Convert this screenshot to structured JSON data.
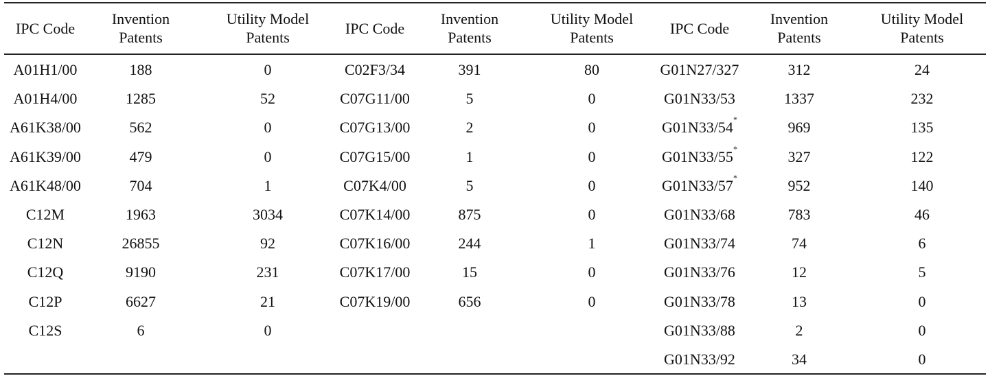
{
  "headers": [
    [
      "IPC Code"
    ],
    [
      "Invention",
      "Patents"
    ],
    [
      "Utility Model",
      "Patents"
    ]
  ],
  "groups": [
    {
      "rows": [
        {
          "code": "A01H1/00",
          "sup": "",
          "inv": "188",
          "util": "0"
        },
        {
          "code": "A01H4/00",
          "sup": "",
          "inv": "1285",
          "util": "52"
        },
        {
          "code": "A61K38/00",
          "sup": "",
          "inv": "562",
          "util": "0"
        },
        {
          "code": "A61K39/00",
          "sup": "",
          "inv": "479",
          "util": "0"
        },
        {
          "code": "A61K48/00",
          "sup": "",
          "inv": "704",
          "util": "1"
        },
        {
          "code": "C12M",
          "sup": "",
          "inv": "1963",
          "util": "3034"
        },
        {
          "code": "C12N",
          "sup": "",
          "inv": "26855",
          "util": "92"
        },
        {
          "code": "C12Q",
          "sup": "",
          "inv": "9190",
          "util": "231"
        },
        {
          "code": "C12P",
          "sup": "",
          "inv": "6627",
          "util": "21"
        },
        {
          "code": "C12S",
          "sup": "",
          "inv": "6",
          "util": "0"
        }
      ]
    },
    {
      "rows": [
        {
          "code": "C02F3/34",
          "sup": "",
          "inv": "391",
          "util": "80"
        },
        {
          "code": "C07G11/00",
          "sup": "",
          "inv": "5",
          "util": "0"
        },
        {
          "code": "C07G13/00",
          "sup": "",
          "inv": "2",
          "util": "0"
        },
        {
          "code": "C07G15/00",
          "sup": "",
          "inv": "1",
          "util": "0"
        },
        {
          "code": "C07K4/00",
          "sup": "",
          "inv": "5",
          "util": "0"
        },
        {
          "code": "C07K14/00",
          "sup": "",
          "inv": "875",
          "util": "0"
        },
        {
          "code": "C07K16/00",
          "sup": "",
          "inv": "244",
          "util": "1"
        },
        {
          "code": "C07K17/00",
          "sup": "",
          "inv": "15",
          "util": "0"
        },
        {
          "code": "C07K19/00",
          "sup": "",
          "inv": "656",
          "util": "0"
        }
      ]
    },
    {
      "rows": [
        {
          "code": "G01N27/327",
          "sup": "",
          "inv": "312",
          "util": "24"
        },
        {
          "code": "G01N33/53",
          "sup": "",
          "inv": "1337",
          "util": "232"
        },
        {
          "code": "G01N33/54",
          "sup": "*",
          "inv": "969",
          "util": "135"
        },
        {
          "code": "G01N33/55",
          "sup": "*",
          "inv": "327",
          "util": "122"
        },
        {
          "code": "G01N33/57",
          "sup": "*",
          "inv": "952",
          "util": "140"
        },
        {
          "code": "G01N33/68",
          "sup": "",
          "inv": "783",
          "util": "46"
        },
        {
          "code": "G01N33/74",
          "sup": "",
          "inv": "74",
          "util": "6"
        },
        {
          "code": "G01N33/76",
          "sup": "",
          "inv": "12",
          "util": "5"
        },
        {
          "code": "G01N33/78",
          "sup": "",
          "inv": "13",
          "util": "0"
        },
        {
          "code": "G01N33/88",
          "sup": "",
          "inv": "2",
          "util": "0"
        },
        {
          "code": "G01N33/92",
          "sup": "",
          "inv": "34",
          "util": "0"
        }
      ]
    }
  ]
}
